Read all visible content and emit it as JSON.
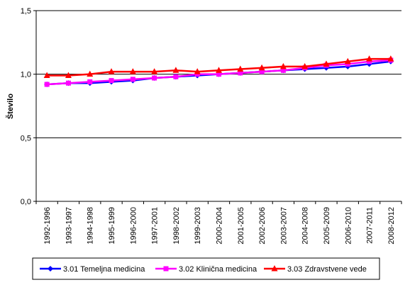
{
  "chart_data": {
    "type": "line",
    "title": "",
    "xlabel": "",
    "ylabel": "Število",
    "ylim": [
      0,
      1.5
    ],
    "y_ticks": [
      "0,0",
      "0,5",
      "1,0",
      "1,5"
    ],
    "y_tick_values": [
      0,
      0.5,
      1.0,
      1.5
    ],
    "grid": "horizontal major",
    "legend_position": "bottom",
    "categories": [
      "1992-1996",
      "1993-1997",
      "1994-1998",
      "1995-1999",
      "1996-2000",
      "1997-2001",
      "1998-2002",
      "1999-2003",
      "2000-2004",
      "2001-2005",
      "2002-2006",
      "2003-2007",
      "2004-2008",
      "2005-2009",
      "2006-2010",
      "2007-2011",
      "2008-2012"
    ],
    "series": [
      {
        "name": "3.01 Temeljna medicina",
        "color": "#0000ff",
        "marker": "diamond",
        "values": [
          0.92,
          0.93,
          0.93,
          0.94,
          0.95,
          0.97,
          0.98,
          0.99,
          1.0,
          1.01,
          1.02,
          1.03,
          1.04,
          1.05,
          1.06,
          1.08,
          1.1
        ]
      },
      {
        "name": "3.02 Klinična medicina",
        "color": "#ff00ff",
        "marker": "square",
        "values": [
          0.92,
          0.93,
          0.94,
          0.95,
          0.96,
          0.97,
          0.98,
          1.0,
          1.0,
          1.01,
          1.02,
          1.03,
          1.05,
          1.07,
          1.08,
          1.1,
          1.11
        ]
      },
      {
        "name": "3.03 Zdravstvene vede",
        "color": "#ff0000",
        "marker": "triangle",
        "values": [
          0.99,
          0.99,
          1.0,
          1.02,
          1.02,
          1.02,
          1.03,
          1.02,
          1.03,
          1.04,
          1.05,
          1.06,
          1.06,
          1.08,
          1.1,
          1.12,
          1.12
        ]
      }
    ]
  }
}
